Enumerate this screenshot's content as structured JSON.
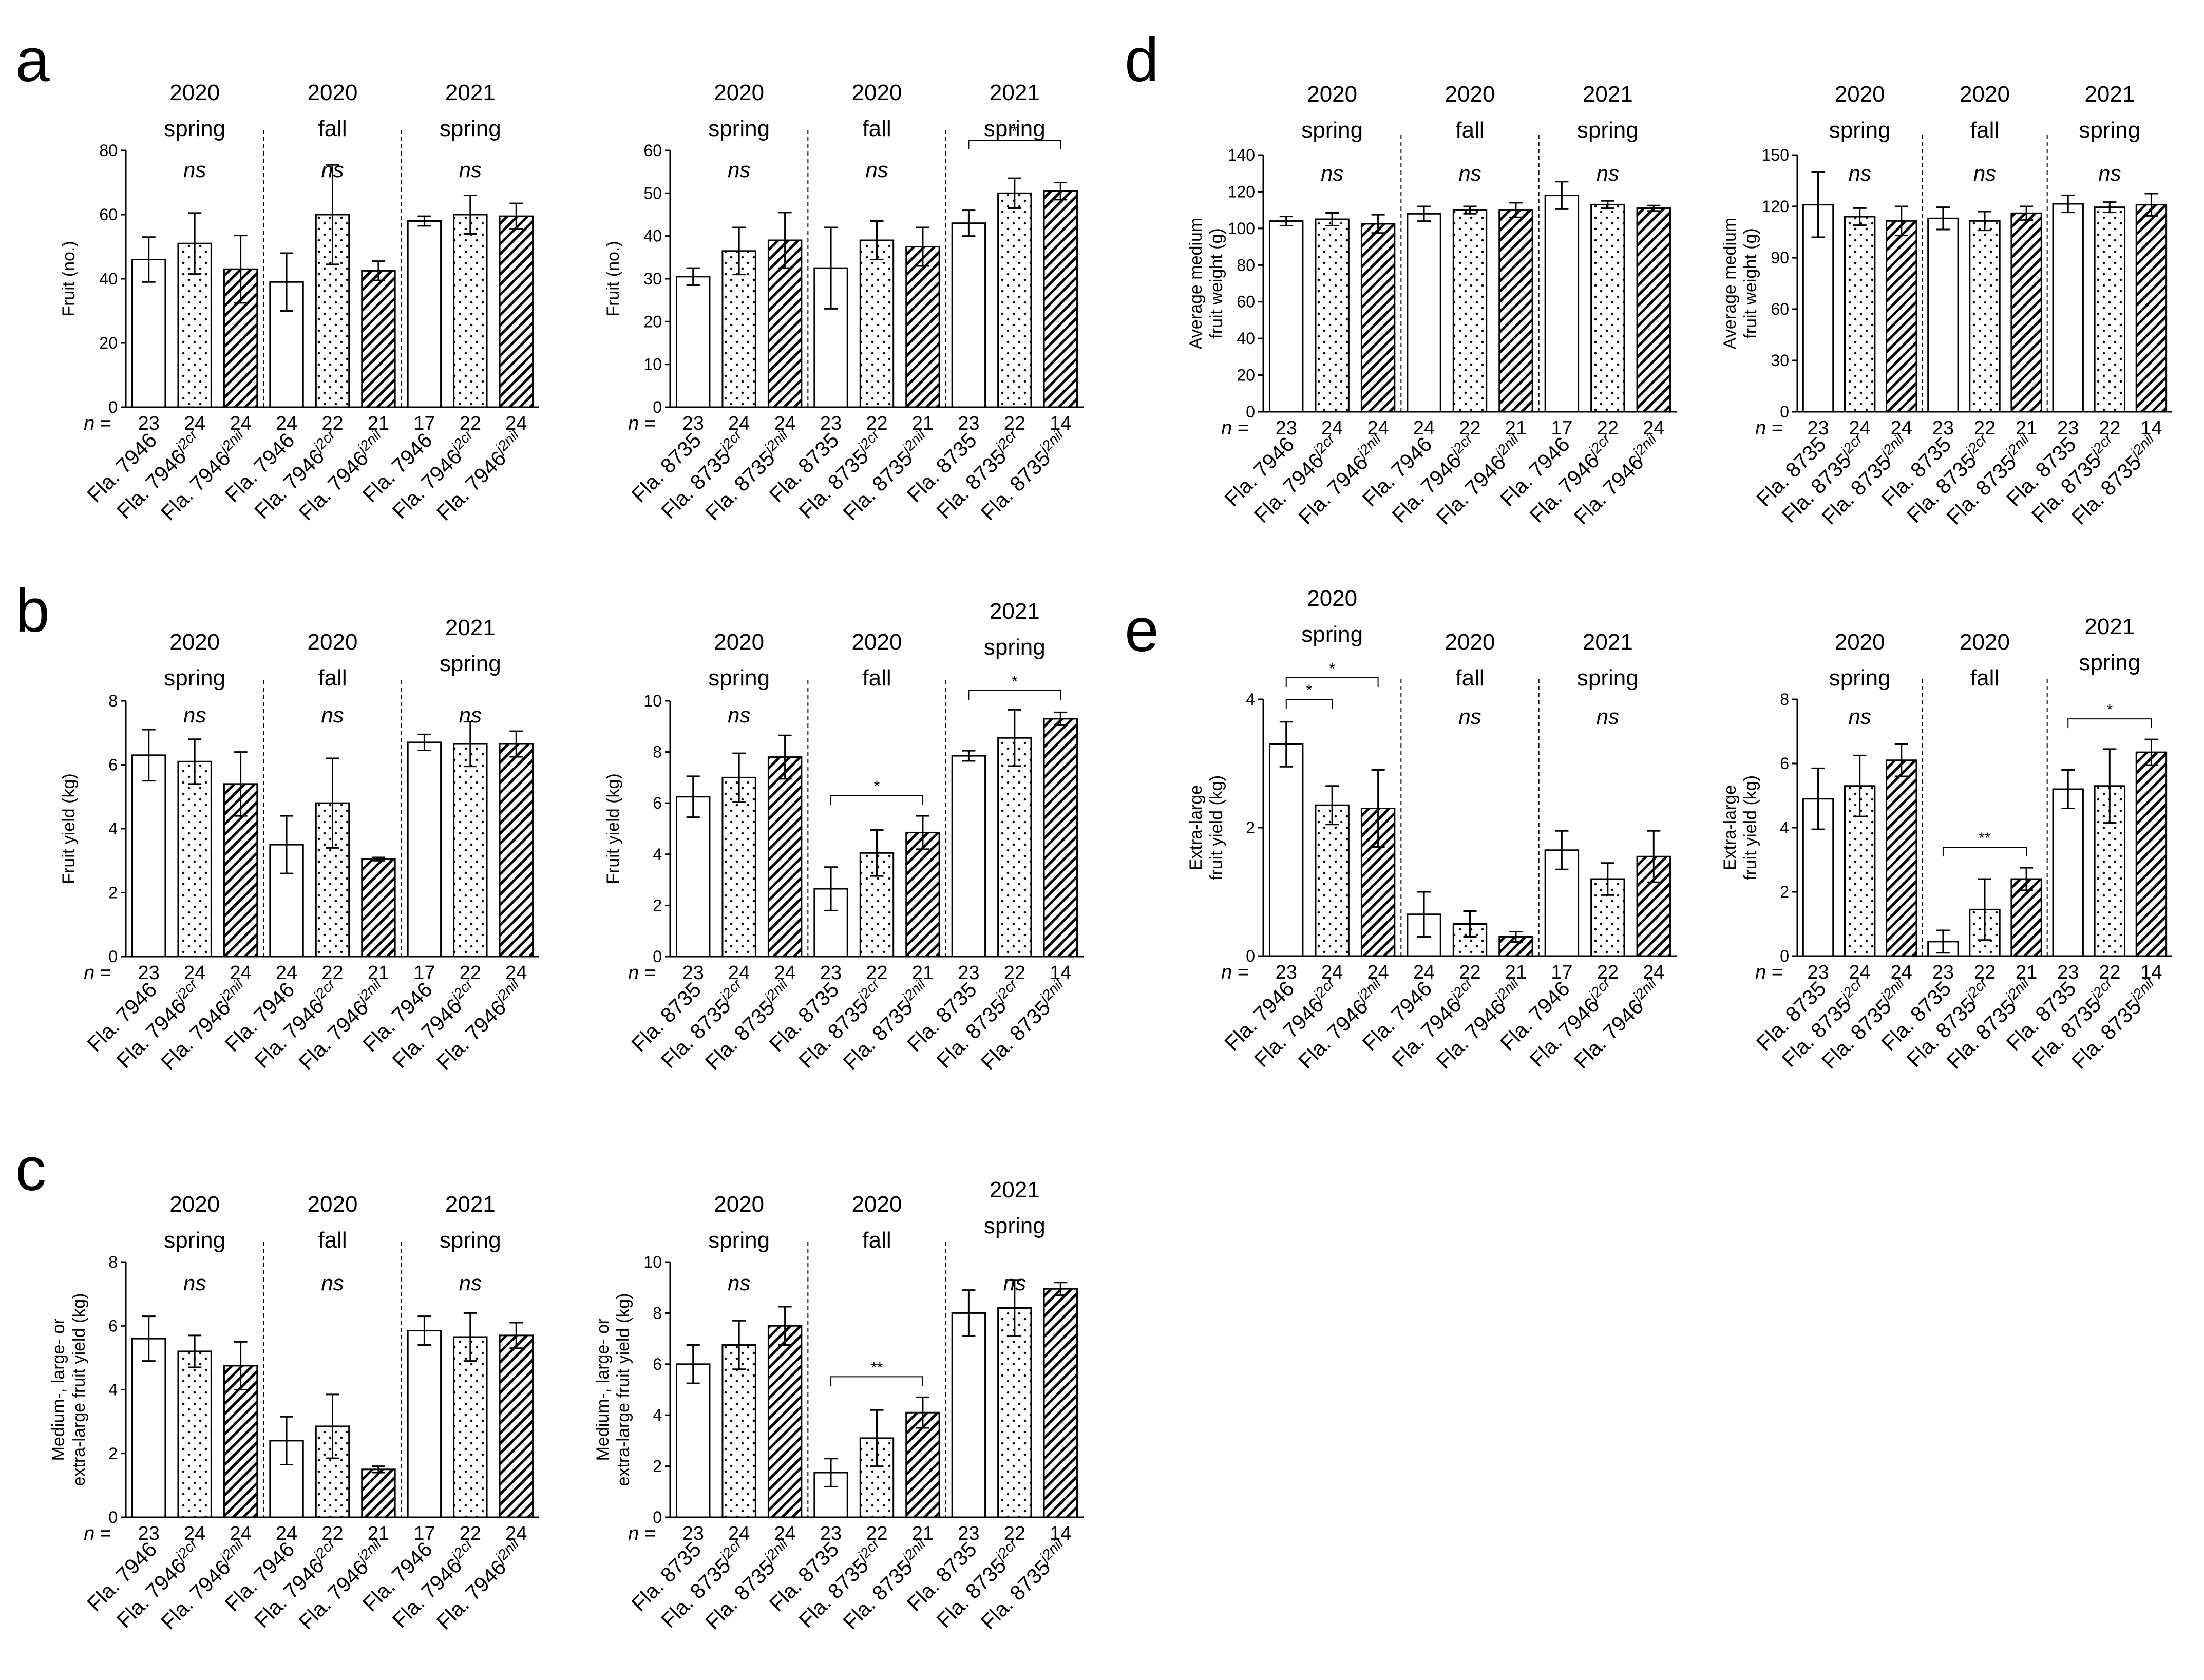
{
  "letters": [
    "a",
    "b",
    "c",
    "d",
    "e"
  ],
  "labels": {
    "n_prefix": "n",
    "n_eq": " = ",
    "base7946": "Fla. 7946",
    "base8735": "Fla. 8735",
    "sup_cr": "j2cr",
    "sup_nil": "j2nil"
  },
  "colors": {
    "bar_open": "#ffffff",
    "ink": "#000000"
  },
  "chart_data": [
    {
      "type": "bar",
      "id": "a-left",
      "panel": "a",
      "line": "7946",
      "ylabel": "Fruit (no.)",
      "ylim": [
        0,
        80
      ],
      "yticks": [
        0,
        20,
        40,
        60,
        80
      ],
      "groups": [
        {
          "season": [
            "2020",
            "spring"
          ],
          "values": [
            46,
            51,
            43
          ],
          "errors": [
            7,
            9.5,
            10.5
          ],
          "n": [
            "23",
            "24",
            "24"
          ],
          "sig": "ns"
        },
        {
          "season": [
            "2020",
            "fall"
          ],
          "values": [
            39,
            60,
            42.5
          ],
          "errors": [
            9,
            15.5,
            3
          ],
          "n": [
            "24",
            "22",
            "21"
          ],
          "sig": "ns"
        },
        {
          "season": [
            "2021",
            "spring"
          ],
          "values": [
            58,
            60,
            59.5
          ],
          "errors": [
            1.5,
            6,
            4
          ],
          "n": [
            "17",
            "22",
            "24"
          ],
          "sig": "ns"
        }
      ]
    },
    {
      "type": "bar",
      "id": "a-right",
      "panel": "a",
      "line": "8735",
      "ylabel": "Fruit (no.)",
      "ylim": [
        0,
        60
      ],
      "yticks": [
        0,
        10,
        20,
        30,
        40,
        50,
        60
      ],
      "groups": [
        {
          "season": [
            "2020",
            "spring"
          ],
          "values": [
            30.5,
            36.5,
            39
          ],
          "errors": [
            2,
            5.5,
            6.5
          ],
          "n": [
            "23",
            "24",
            "24"
          ],
          "sig": "ns"
        },
        {
          "season": [
            "2020",
            "fall"
          ],
          "values": [
            32.5,
            39,
            37.5
          ],
          "errors": [
            9.5,
            4.5,
            4.5
          ],
          "n": [
            "23",
            "22",
            "21"
          ],
          "sig": "ns"
        },
        {
          "season": [
            "2021",
            "spring"
          ],
          "values": [
            43,
            50,
            50.5
          ],
          "errors": [
            3,
            3.5,
            2
          ],
          "n": [
            "23",
            "22",
            "14"
          ],
          "sig": "*"
        }
      ]
    },
    {
      "type": "bar",
      "id": "b-left",
      "panel": "b",
      "line": "7946",
      "ylabel": "Fruit yield (kg)",
      "ylim": [
        0,
        8
      ],
      "yticks": [
        0,
        2,
        4,
        6,
        8
      ],
      "groups": [
        {
          "season": [
            "2020",
            "spring"
          ],
          "values": [
            6.3,
            6.1,
            5.4
          ],
          "errors": [
            0.8,
            0.7,
            1
          ],
          "n": [
            "23",
            "24",
            "24"
          ],
          "sig": "ns"
        },
        {
          "season": [
            "2020",
            "fall"
          ],
          "values": [
            3.5,
            4.8,
            3.05
          ],
          "errors": [
            0.9,
            1.4,
            0.05
          ],
          "n": [
            "24",
            "22",
            "21"
          ],
          "sig": "ns"
        },
        {
          "season": [
            "2021",
            "spring"
          ],
          "values": [
            6.7,
            6.65,
            6.65
          ],
          "errors": [
            0.25,
            0.7,
            0.4
          ],
          "n": [
            "17",
            "22",
            "24"
          ],
          "sig": "ns"
        }
      ]
    },
    {
      "type": "bar",
      "id": "b-right",
      "panel": "b",
      "line": "8735",
      "ylabel": "Fruit yield (kg)",
      "ylim": [
        0,
        10
      ],
      "yticks": [
        0,
        2,
        4,
        6,
        8,
        10
      ],
      "groups": [
        {
          "season": [
            "2020",
            "spring"
          ],
          "values": [
            6.25,
            7,
            7.8
          ],
          "errors": [
            0.8,
            0.95,
            0.85
          ],
          "n": [
            "23",
            "24",
            "24"
          ],
          "sig": "ns"
        },
        {
          "season": [
            "2020",
            "fall"
          ],
          "values": [
            2.65,
            4.05,
            4.85
          ],
          "errors": [
            0.85,
            0.9,
            0.65
          ],
          "n": [
            "23",
            "22",
            "21"
          ],
          "sig": "*"
        },
        {
          "season": [
            "2021",
            "spring"
          ],
          "values": [
            7.85,
            8.55,
            9.3
          ],
          "errors": [
            0.2,
            1.1,
            0.25
          ],
          "n": [
            "23",
            "22",
            "14"
          ],
          "sig": "*"
        }
      ]
    },
    {
      "type": "bar",
      "id": "c-left",
      "panel": "c",
      "line": "7946",
      "ylabel": [
        "Medium-, large- or",
        "extra-large fruit yield (kg)"
      ],
      "ylim": [
        0,
        8
      ],
      "yticks": [
        0,
        2,
        4,
        6,
        8
      ],
      "groups": [
        {
          "season": [
            "2020",
            "spring"
          ],
          "values": [
            5.6,
            5.2,
            4.75
          ],
          "errors": [
            0.7,
            0.5,
            0.75
          ],
          "n": [
            "23",
            "24",
            "24"
          ],
          "sig": "ns"
        },
        {
          "season": [
            "2020",
            "fall"
          ],
          "values": [
            2.4,
            2.85,
            1.5
          ],
          "errors": [
            0.75,
            1,
            0.1
          ],
          "n": [
            "24",
            "22",
            "21"
          ],
          "sig": "ns"
        },
        {
          "season": [
            "2021",
            "spring"
          ],
          "values": [
            5.85,
            5.65,
            5.7
          ],
          "errors": [
            0.45,
            0.75,
            0.4
          ],
          "n": [
            "17",
            "22",
            "24"
          ],
          "sig": "ns"
        }
      ]
    },
    {
      "type": "bar",
      "id": "c-right",
      "panel": "c",
      "line": "8735",
      "ylabel": [
        "Medium-, large- or",
        "extra-large fruit yield (kg)"
      ],
      "ylim": [
        0,
        10
      ],
      "yticks": [
        0,
        2,
        4,
        6,
        8,
        10
      ],
      "groups": [
        {
          "season": [
            "2020",
            "spring"
          ],
          "values": [
            6,
            6.75,
            7.5
          ],
          "errors": [
            0.75,
            0.95,
            0.75
          ],
          "n": [
            "23",
            "24",
            "24"
          ],
          "sig": "ns"
        },
        {
          "season": [
            "2020",
            "fall"
          ],
          "values": [
            1.75,
            3.1,
            4.1
          ],
          "errors": [
            0.55,
            1.1,
            0.6
          ],
          "n": [
            "23",
            "22",
            "21"
          ],
          "sig": "**"
        },
        {
          "season": [
            "2021",
            "spring"
          ],
          "values": [
            8,
            8.2,
            8.95
          ],
          "errors": [
            0.9,
            1.1,
            0.25
          ],
          "n": [
            "23",
            "22",
            "14"
          ],
          "sig": "ns"
        }
      ]
    },
    {
      "type": "bar",
      "id": "d-left",
      "panel": "d",
      "line": "7946",
      "ylabel": [
        "Average medium",
        "fruit weight (g)"
      ],
      "ylim": [
        0,
        140
      ],
      "yticks": [
        0,
        20,
        40,
        60,
        80,
        100,
        120,
        140
      ],
      "groups": [
        {
          "season": [
            "2020",
            "spring"
          ],
          "values": [
            104,
            105,
            102.5
          ],
          "errors": [
            2.5,
            3.5,
            5
          ],
          "n": [
            "23",
            "24",
            "24"
          ],
          "sig": "ns"
        },
        {
          "season": [
            "2020",
            "fall"
          ],
          "values": [
            108,
            110,
            110
          ],
          "errors": [
            4,
            2,
            4
          ],
          "n": [
            "24",
            "22",
            "21"
          ],
          "sig": "ns"
        },
        {
          "season": [
            "2021",
            "spring"
          ],
          "values": [
            118,
            113,
            111
          ],
          "errors": [
            7.5,
            2,
            1.5
          ],
          "n": [
            "17",
            "22",
            "24"
          ],
          "sig": "ns"
        }
      ]
    },
    {
      "type": "bar",
      "id": "d-right",
      "panel": "d",
      "line": "8735",
      "ylabel": [
        "Average medium",
        "fruit weight (g)"
      ],
      "ylim": [
        0,
        150
      ],
      "yticks": [
        0,
        30,
        60,
        90,
        120,
        150
      ],
      "groups": [
        {
          "season": [
            "2020",
            "spring"
          ],
          "values": [
            121,
            114,
            111.5
          ],
          "errors": [
            19,
            5,
            8.5
          ],
          "n": [
            "23",
            "24",
            "24"
          ],
          "sig": "ns"
        },
        {
          "season": [
            "2020",
            "fall"
          ],
          "values": [
            113,
            111.5,
            116
          ],
          "errors": [
            6.5,
            5.5,
            4
          ],
          "n": [
            "23",
            "22",
            "21"
          ],
          "sig": "ns"
        },
        {
          "season": [
            "2021",
            "spring"
          ],
          "values": [
            121.5,
            119.5,
            121
          ],
          "errors": [
            5,
            3,
            6.5
          ],
          "n": [
            "23",
            "22",
            "14"
          ],
          "sig": "ns"
        }
      ]
    },
    {
      "type": "bar",
      "id": "e-left",
      "panel": "e",
      "line": "7946",
      "ylabel": [
        "Extra-large",
        "fruit yield (kg)"
      ],
      "ylim": [
        0,
        4
      ],
      "yticks": [
        0,
        2,
        4
      ],
      "groups": [
        {
          "season": [
            "2020",
            "spring"
          ],
          "values": [
            3.3,
            2.35,
            2.3
          ],
          "errors": [
            0.35,
            0.3,
            0.6
          ],
          "n": [
            "23",
            "24",
            "24"
          ],
          "sig": "*",
          "sig_pairs": "two"
        },
        {
          "season": [
            "2020",
            "fall"
          ],
          "values": [
            0.65,
            0.5,
            0.3
          ],
          "errors": [
            0.35,
            0.2,
            0.08
          ],
          "n": [
            "24",
            "22",
            "21"
          ],
          "sig": "ns"
        },
        {
          "season": [
            "2021",
            "spring"
          ],
          "values": [
            1.65,
            1.2,
            1.55
          ],
          "errors": [
            0.3,
            0.25,
            0.4
          ],
          "n": [
            "17",
            "22",
            "24"
          ],
          "sig": "ns"
        }
      ]
    },
    {
      "type": "bar",
      "id": "e-right",
      "panel": "e",
      "line": "8735",
      "ylabel": [
        "Extra-large",
        "fruit yield (kg)"
      ],
      "ylim": [
        0,
        8
      ],
      "yticks": [
        0,
        2,
        4,
        6,
        8
      ],
      "groups": [
        {
          "season": [
            "2020",
            "spring"
          ],
          "values": [
            4.9,
            5.3,
            6.1
          ],
          "errors": [
            0.95,
            0.95,
            0.5
          ],
          "n": [
            "23",
            "24",
            "24"
          ],
          "sig": "ns"
        },
        {
          "season": [
            "2020",
            "fall"
          ],
          "values": [
            0.45,
            1.45,
            2.4
          ],
          "errors": [
            0.35,
            0.95,
            0.35
          ],
          "n": [
            "23",
            "22",
            "21"
          ],
          "sig": "**"
        },
        {
          "season": [
            "2021",
            "spring"
          ],
          "values": [
            5.2,
            5.3,
            6.35
          ],
          "errors": [
            0.6,
            1.15,
            0.4
          ],
          "n": [
            "23",
            "22",
            "14"
          ],
          "sig": "*"
        }
      ]
    }
  ]
}
